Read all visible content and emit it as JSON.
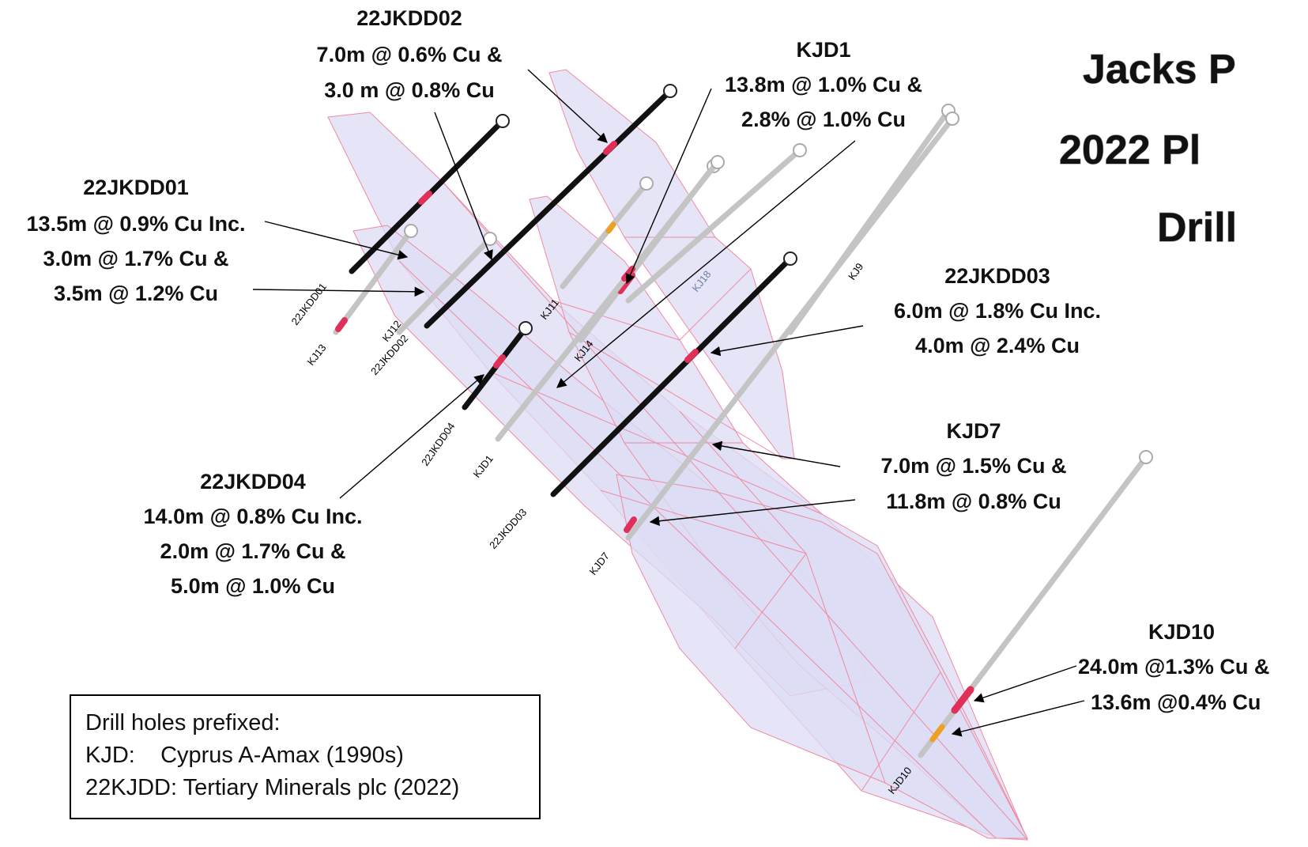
{
  "title": {
    "line1": "Jacks P",
    "line2": "2022 Pl",
    "line3": "Drill"
  },
  "callouts": {
    "22JKDD02": [
      "22JKDD02",
      "7.0m @ 0.6% Cu &",
      "3.0 m @ 0.8% Cu"
    ],
    "KJD1": [
      "KJD1",
      "13.8m @ 1.0% Cu &",
      "2.8% @ 1.0% Cu"
    ],
    "22JKDD01": [
      "22JKDD01",
      "13.5m @ 0.9% Cu Inc.",
      "3.0m @ 1.7% Cu &",
      "3.5m @ 1.2% Cu"
    ],
    "22JKDD03": [
      "22JKDD03",
      "6.0m @ 1.8% Cu Inc.",
      "4.0m @ 2.4% Cu"
    ],
    "KJD7": [
      "KJD7",
      "7.0m @ 1.5% Cu &",
      "11.8m @ 0.8% Cu"
    ],
    "22JKDD04": [
      "22JKDD04",
      "14.0m @ 0.8% Cu Inc.",
      "2.0m @ 1.7% Cu &",
      "5.0m @ 1.0% Cu"
    ],
    "KJD10": [
      "KJD10",
      "24.0m @1.3% Cu &",
      "13.6m @0.4% Cu"
    ]
  },
  "hole_labels": {
    "h22JKDD01": "22JKDD01",
    "KJ13": "KJ13",
    "KJ12": "KJ12",
    "h22JKDD02": "22JKDD02",
    "KJ11": "KJ11",
    "KJ14": "KJ14",
    "KJ18": "KJ18",
    "KJ9": "KJ9",
    "h22JKDD04": "22JKDD04",
    "KJD1": "KJD1",
    "h22JKDD03": "22JKDD03",
    "KJD7": "KJD7",
    "KJD10": "KJD10"
  },
  "legend": {
    "line1": "Drill holes prefixed:",
    "line2": "KJD:    Cyprus A-Amax (1990s)",
    "line3": "22KJDD: Tertiary Minerals plc (2022)"
  },
  "colors": {
    "orebody_fill": "#dcdcf4",
    "orebody_edge": "#f08aa0",
    "historic_hole": "#c4c4c4",
    "new_hole": "#111111",
    "intercept": "#e0305a"
  }
}
